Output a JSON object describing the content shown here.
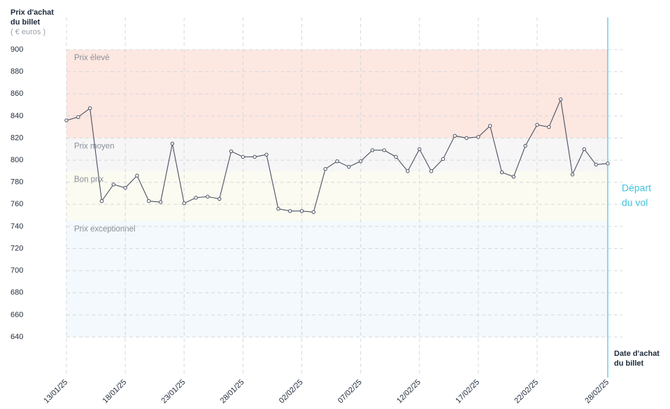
{
  "chart_data": {
    "type": "line",
    "y_title": [
      "Prix d'achat",
      "du billet"
    ],
    "y_unit": "( € euros )",
    "x_title": [
      "Date d'achat",
      "du billet"
    ],
    "categories": [
      "13/01/25",
      null,
      null,
      null,
      null,
      "18/01/25",
      null,
      null,
      null,
      null,
      "23/01/25",
      null,
      null,
      null,
      null,
      "28/01/25",
      null,
      null,
      null,
      null,
      "02/02/25",
      null,
      null,
      null,
      null,
      "07/02/25",
      null,
      null,
      null,
      null,
      "12/02/25",
      null,
      null,
      null,
      null,
      "17/02/25",
      null,
      null,
      null,
      null,
      "22/02/25",
      null,
      null,
      null,
      null,
      null,
      "28/02/25"
    ],
    "series": [
      {
        "name": "Prix",
        "color": "#4a5060",
        "values": [
          836,
          839,
          847,
          763,
          778,
          775,
          786,
          763,
          762,
          815,
          761,
          766,
          767,
          765,
          808,
          803,
          803,
          805,
          756,
          754,
          754,
          753,
          792,
          799,
          794,
          799,
          809,
          809,
          803,
          790,
          810,
          790,
          801,
          822,
          820,
          821,
          831,
          789,
          785,
          813,
          832,
          830,
          855,
          787,
          810,
          796,
          797
        ]
      }
    ],
    "bands": [
      {
        "label": "Prix élevé",
        "from": 820,
        "to": 900,
        "color": "#fde7e1"
      },
      {
        "label": "Prix moyen",
        "from": 790,
        "to": 820,
        "color": "#f6f6f7"
      },
      {
        "label": "Bon prix",
        "from": 745,
        "to": 790,
        "color": "#fbfbf1"
      },
      {
        "label": "Prix exceptionnel",
        "from": 640,
        "to": 745,
        "color": "#f3f9fd"
      }
    ],
    "departure": {
      "label": [
        "Départ",
        "du vol"
      ],
      "color": "#3fc3dd"
    },
    "ylim": [
      640,
      900
    ],
    "yticks": [
      640,
      660,
      680,
      700,
      720,
      740,
      760,
      780,
      800,
      820,
      840,
      860,
      880,
      900
    ],
    "grid": true
  }
}
